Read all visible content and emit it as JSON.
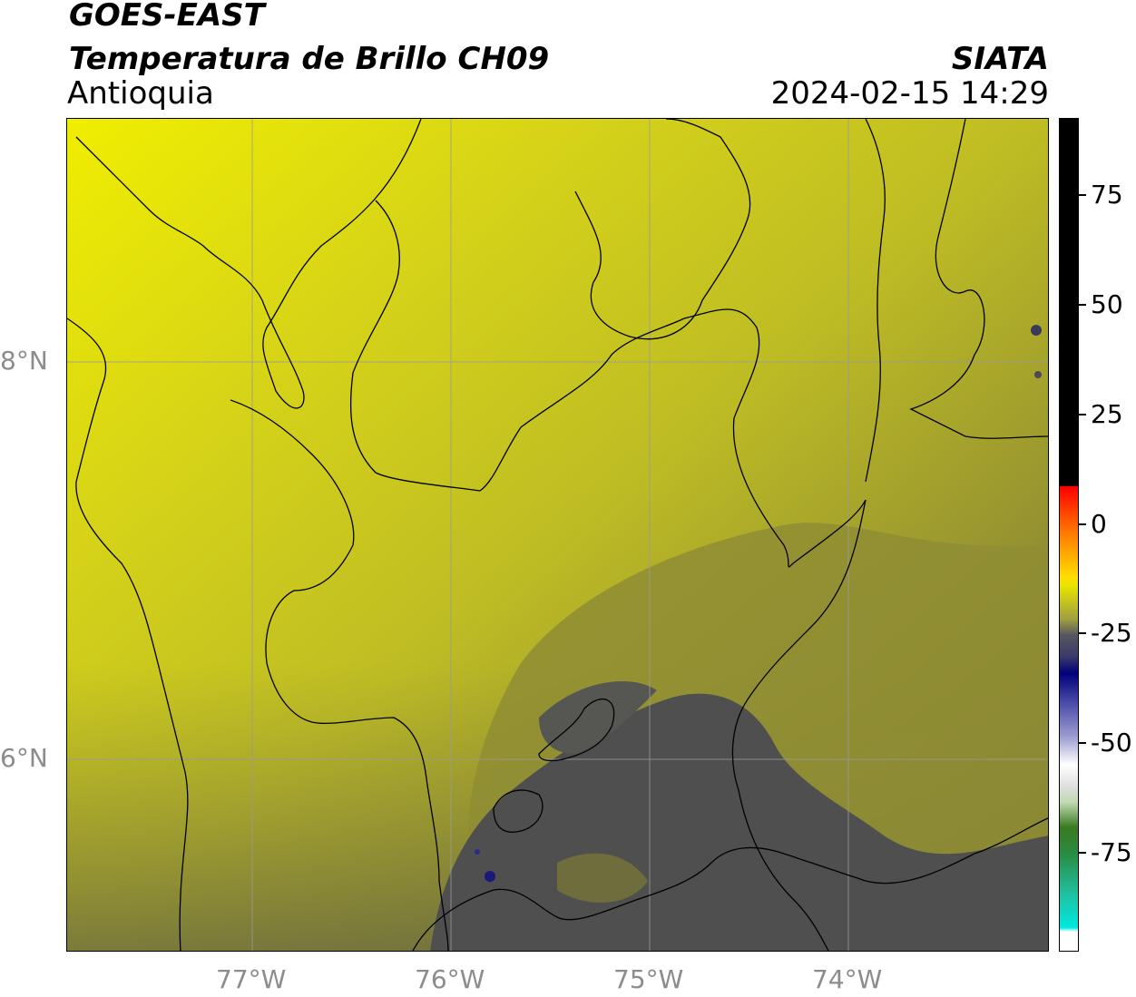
{
  "header": {
    "satellite": "GOES-EAST",
    "product": "Temperatura de Brillo CH09",
    "region": "Antioquia",
    "organization": "SIATA",
    "datetime": "2024-02-15 14:29"
  },
  "map": {
    "lat_labels": [
      "8°N",
      "6°N"
    ],
    "lon_labels": [
      "77°W",
      "76°W",
      "75°W",
      "74°W"
    ],
    "extent": {
      "lon_min": -77.93,
      "lon_max": -73.0,
      "lat_min": 5.03,
      "lat_max": 9.22
    },
    "colors": {
      "warm_yellow": "#e8e400",
      "mid_olive": "#a8a62a",
      "cold_gray": "#555555",
      "coastline": "#000000",
      "gridline": "#9a9a9a"
    }
  },
  "colorbar": {
    "tick_labels": [
      "75",
      "50",
      "25",
      "0",
      "-25",
      "-50",
      "-75"
    ],
    "tick_values": [
      75,
      50,
      25,
      0,
      -25,
      -50,
      -75
    ],
    "range": [
      -96,
      92
    ],
    "unit": ""
  }
}
